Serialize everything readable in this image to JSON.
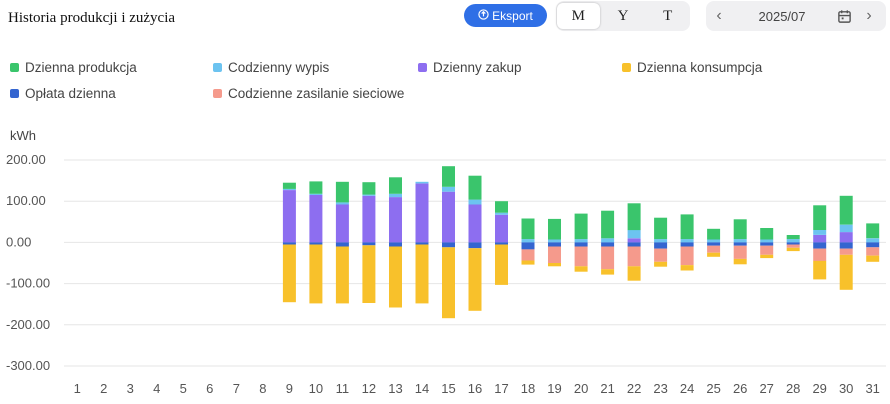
{
  "title": "Historia produkcji i zużycia",
  "export_label": "Eksport",
  "period_options": [
    "M",
    "Y",
    "T"
  ],
  "active_period": "M",
  "date_value": "2025/07",
  "colors": {
    "produkcja": "#3ac56c",
    "wypis": "#6cc3f0",
    "zakup": "#8d6ef0",
    "konsumpcja": "#f8c12b",
    "oplata": "#3465d0",
    "siec": "#f59a8c"
  },
  "chart_data": {
    "type": "bar",
    "stacked": true,
    "unit_label": "kWh",
    "ylim": [
      -300,
      200
    ],
    "y_ticks": [
      "200.00",
      "100.00",
      "0.00",
      "-100.00",
      "-200.00",
      "-300.00"
    ],
    "y_tick_values": [
      200,
      100,
      0,
      -100,
      -200,
      -300
    ],
    "categories": [
      "1",
      "2",
      "3",
      "4",
      "5",
      "6",
      "7",
      "8",
      "9",
      "10",
      "11",
      "12",
      "13",
      "14",
      "15",
      "16",
      "17",
      "18",
      "19",
      "20",
      "21",
      "22",
      "23",
      "24",
      "25",
      "26",
      "27",
      "28",
      "29",
      "30",
      "31"
    ],
    "legend": [
      {
        "key": "produkcja",
        "label": "Dzienna produkcja"
      },
      {
        "key": "wypis",
        "label": "Codzienny wypis"
      },
      {
        "key": "zakup",
        "label": "Dzienny zakup"
      },
      {
        "key": "konsumpcja",
        "label": "Dzienna konsumpcja"
      },
      {
        "key": "oplata",
        "label": "Opłata dzienna"
      },
      {
        "key": "siec",
        "label": "Codzienne zasilanie sieciowe"
      }
    ],
    "series": [
      {
        "name": "Dzienny zakup",
        "key": "zakup",
        "stack": "pos",
        "values": [
          0,
          0,
          0,
          0,
          0,
          0,
          0,
          0,
          127,
          115,
          92,
          113,
          110,
          143,
          123,
          92,
          67,
          0,
          0,
          0,
          0,
          10,
          0,
          0,
          0,
          0,
          0,
          0,
          18,
          25,
          0
        ]
      },
      {
        "name": "Codzienny wypis",
        "key": "wypis",
        "stack": "pos",
        "values": [
          0,
          0,
          0,
          0,
          0,
          0,
          0,
          0,
          3,
          3,
          5,
          3,
          8,
          4,
          12,
          12,
          5,
          8,
          7,
          8,
          10,
          20,
          8,
          8,
          7,
          8,
          7,
          8,
          12,
          18,
          10
        ]
      },
      {
        "name": "Dzienna produkcja",
        "key": "produkcja",
        "stack": "pos",
        "values": [
          0,
          0,
          0,
          0,
          0,
          0,
          0,
          0,
          15,
          30,
          50,
          30,
          40,
          0,
          50,
          58,
          28,
          50,
          50,
          62,
          67,
          65,
          52,
          60,
          26,
          48,
          28,
          10,
          60,
          70,
          36
        ]
      },
      {
        "name": "Opłata dzienna",
        "key": "oplata",
        "stack": "neg",
        "values": [
          0,
          0,
          0,
          0,
          0,
          0,
          0,
          0,
          -5,
          -5,
          -10,
          -7,
          -10,
          -5,
          -12,
          -14,
          -5,
          -17,
          -10,
          -10,
          -10,
          -10,
          -15,
          -10,
          -8,
          -8,
          -8,
          -5,
          -15,
          -15,
          -12
        ]
      },
      {
        "name": "Codzienne zasilanie sieciowe",
        "key": "siec",
        "stack": "neg",
        "values": [
          0,
          0,
          0,
          0,
          0,
          0,
          0,
          0,
          0,
          0,
          0,
          0,
          0,
          0,
          0,
          0,
          0,
          -27,
          -40,
          -48,
          -55,
          -48,
          -32,
          -45,
          -17,
          -32,
          -22,
          -8,
          -30,
          -15,
          -20
        ]
      },
      {
        "name": "Dzienna konsumpcja",
        "key": "konsumpcja",
        "stack": "neg",
        "values": [
          0,
          0,
          0,
          0,
          0,
          0,
          0,
          0,
          -140,
          -143,
          -138,
          -140,
          -148,
          -143,
          -172,
          -152,
          -98,
          -10,
          -8,
          -13,
          -13,
          -35,
          -12,
          -13,
          -10,
          -13,
          -8,
          -8,
          -45,
          -85,
          -15
        ]
      }
    ]
  }
}
